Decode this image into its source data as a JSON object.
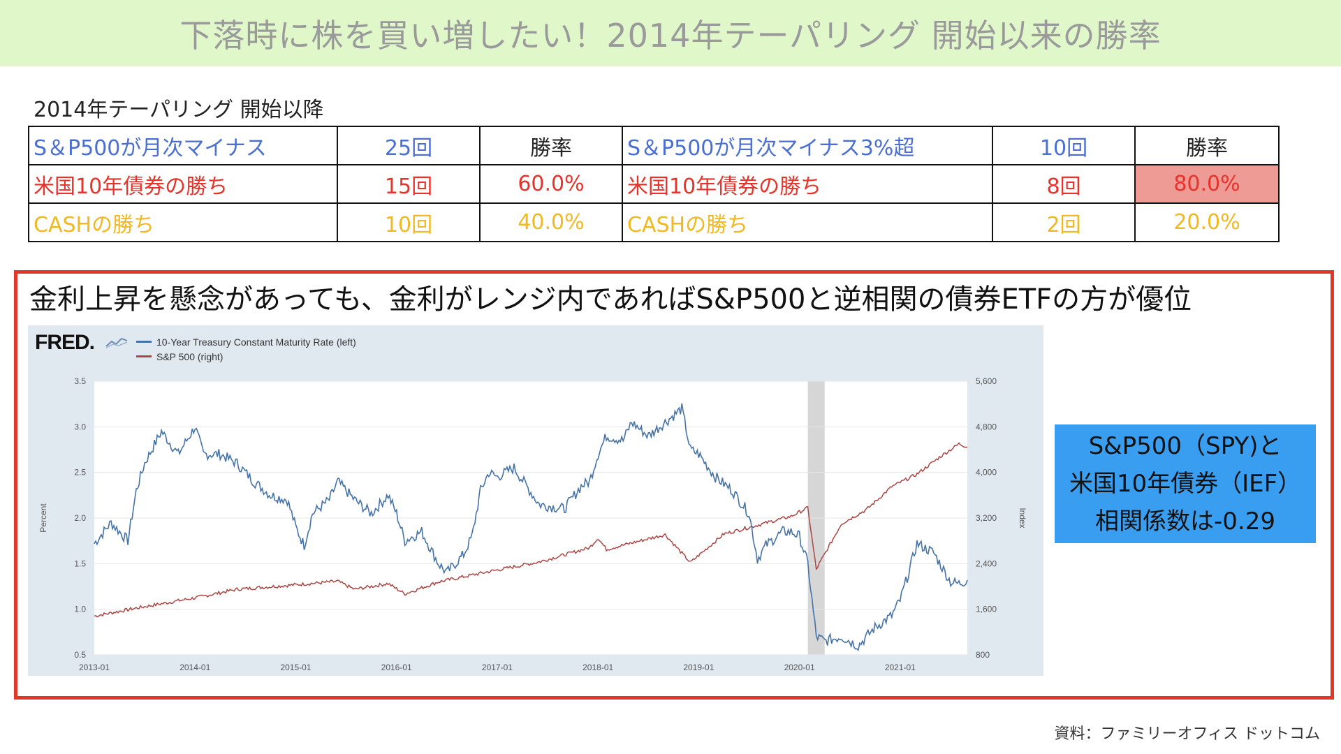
{
  "title": "下落時に株を買い増したい！2014年テーパリング 開始以来の勝率",
  "section_label": "2014年テーパリング 開始以降",
  "table": {
    "rows": [
      {
        "a_label": "S＆P500が月次マイナス",
        "a_count": "25回",
        "a_rate": "勝率",
        "b_label": "S＆P500が月次マイナス3%超",
        "b_count": "10回",
        "b_rate": "勝率"
      },
      {
        "a_label": "米国10年債券の勝ち",
        "a_count": "15回",
        "a_rate": "60.0%",
        "b_label": "米国10年債券の勝ち",
        "b_count": "8回",
        "b_rate": "80.0%"
      },
      {
        "a_label": "CASHの勝ち",
        "a_count": "10回",
        "a_rate": "40.0%",
        "b_label": "CASHの勝ち",
        "b_count": "2回",
        "b_rate": "20.0%"
      }
    ]
  },
  "headline": "金利上昇を懸念があっても、金利がレンジ内であればS&P500と逆相関の債券ETFの方が優位",
  "fred": {
    "logo": "FRED",
    "logo_suffix": "."
  },
  "callout": {
    "line1": "S&P500（SPY)と",
    "line2": "米国10年債券（IEF）",
    "line3": "相関係数は-0.29"
  },
  "source": "資料：ファミリーオフィス ドットコム",
  "colors": {
    "treasury": "#4572a7",
    "sp500": "#aa4643",
    "recession": "#d6d6d6"
  },
  "chart_data": {
    "type": "line",
    "title": "",
    "x_tick_labels": [
      "2013-01",
      "2014-01",
      "2015-01",
      "2016-01",
      "2017-01",
      "2018-01",
      "2019-01",
      "2020-01",
      "2021-01"
    ],
    "xlim": [
      "2013-01",
      "2021-09"
    ],
    "ylabel_left": "Percent",
    "ylabel_right": "Index",
    "ylim_left": [
      0.5,
      3.5
    ],
    "ylim_right": [
      800,
      5600
    ],
    "y_ticks_left": [
      "0.5",
      "1.0",
      "1.5",
      "2.0",
      "2.5",
      "3.0",
      "3.5"
    ],
    "y_ticks_right": [
      "800",
      "1,600",
      "2,400",
      "3,200",
      "4,000",
      "4,800",
      "5,600"
    ],
    "grid": true,
    "legend": "top-left",
    "recession_shading": [
      "2020-02",
      "2020-04"
    ],
    "series": [
      {
        "name": "10-Year Treasury Constant Maturity Rate (left)",
        "axis": "left",
        "points": [
          [
            "2013-01",
            1.72
          ],
          [
            "2013-03",
            1.95
          ],
          [
            "2013-05",
            1.75
          ],
          [
            "2013-06",
            2.3
          ],
          [
            "2013-07",
            2.6
          ],
          [
            "2013-09",
            2.95
          ],
          [
            "2013-11",
            2.7
          ],
          [
            "2014-01",
            3.0
          ],
          [
            "2014-02",
            2.7
          ],
          [
            "2014-04",
            2.7
          ],
          [
            "2014-06",
            2.6
          ],
          [
            "2014-08",
            2.4
          ],
          [
            "2014-10",
            2.25
          ],
          [
            "2014-12",
            2.2
          ],
          [
            "2015-01",
            1.9
          ],
          [
            "2015-02",
            1.7
          ],
          [
            "2015-03",
            2.05
          ],
          [
            "2015-05",
            2.2
          ],
          [
            "2015-06",
            2.4
          ],
          [
            "2015-08",
            2.2
          ],
          [
            "2015-10",
            2.05
          ],
          [
            "2015-12",
            2.25
          ],
          [
            "2016-01",
            2.05
          ],
          [
            "2016-02",
            1.75
          ],
          [
            "2016-04",
            1.85
          ],
          [
            "2016-06",
            1.5
          ],
          [
            "2016-07",
            1.4
          ],
          [
            "2016-09",
            1.6
          ],
          [
            "2016-10",
            1.8
          ],
          [
            "2016-11",
            2.3
          ],
          [
            "2016-12",
            2.5
          ],
          [
            "2017-01",
            2.45
          ],
          [
            "2017-03",
            2.55
          ],
          [
            "2017-06",
            2.15
          ],
          [
            "2017-09",
            2.1
          ],
          [
            "2017-11",
            2.35
          ],
          [
            "2017-12",
            2.4
          ],
          [
            "2018-01",
            2.7
          ],
          [
            "2018-02",
            2.9
          ],
          [
            "2018-04",
            2.85
          ],
          [
            "2018-05",
            3.05
          ],
          [
            "2018-07",
            2.9
          ],
          [
            "2018-09",
            3.05
          ],
          [
            "2018-11",
            3.2
          ],
          [
            "2018-12",
            2.75
          ],
          [
            "2019-01",
            2.7
          ],
          [
            "2019-03",
            2.45
          ],
          [
            "2019-05",
            2.3
          ],
          [
            "2019-07",
            2.05
          ],
          [
            "2019-08",
            1.55
          ],
          [
            "2019-09",
            1.7
          ],
          [
            "2019-11",
            1.85
          ],
          [
            "2019-12",
            1.85
          ],
          [
            "2020-01",
            1.8
          ],
          [
            "2020-02",
            1.5
          ],
          [
            "2020-03",
            0.7
          ],
          [
            "2020-04",
            0.65
          ],
          [
            "2020-06",
            0.7
          ],
          [
            "2020-08",
            0.6
          ],
          [
            "2020-10",
            0.8
          ],
          [
            "2020-12",
            0.93
          ],
          [
            "2021-01",
            1.1
          ],
          [
            "2021-02",
            1.4
          ],
          [
            "2021-03",
            1.72
          ],
          [
            "2021-05",
            1.62
          ],
          [
            "2021-07",
            1.3
          ],
          [
            "2021-08",
            1.28
          ],
          [
            "2021-09",
            1.32
          ]
        ]
      },
      {
        "name": "S&P 500 (right)",
        "axis": "right",
        "points": [
          [
            "2013-01",
            1480
          ],
          [
            "2013-06",
            1620
          ],
          [
            "2014-01",
            1800
          ],
          [
            "2014-06",
            1950
          ],
          [
            "2015-01",
            2030
          ],
          [
            "2015-06",
            2090
          ],
          [
            "2015-08",
            1950
          ],
          [
            "2015-12",
            2050
          ],
          [
            "2016-02",
            1870
          ],
          [
            "2016-06",
            2080
          ],
          [
            "2016-12",
            2260
          ],
          [
            "2017-06",
            2430
          ],
          [
            "2017-12",
            2680
          ],
          [
            "2018-01",
            2850
          ],
          [
            "2018-02",
            2650
          ],
          [
            "2018-09",
            2910
          ],
          [
            "2018-12",
            2420
          ],
          [
            "2019-04",
            2920
          ],
          [
            "2019-12",
            3230
          ],
          [
            "2020-02",
            3380
          ],
          [
            "2020-03",
            2300
          ],
          [
            "2020-06",
            3100
          ],
          [
            "2020-09",
            3350
          ],
          [
            "2020-12",
            3750
          ],
          [
            "2021-03",
            3970
          ],
          [
            "2021-06",
            4300
          ],
          [
            "2021-08",
            4500
          ],
          [
            "2021-09",
            4450
          ]
        ]
      }
    ]
  }
}
